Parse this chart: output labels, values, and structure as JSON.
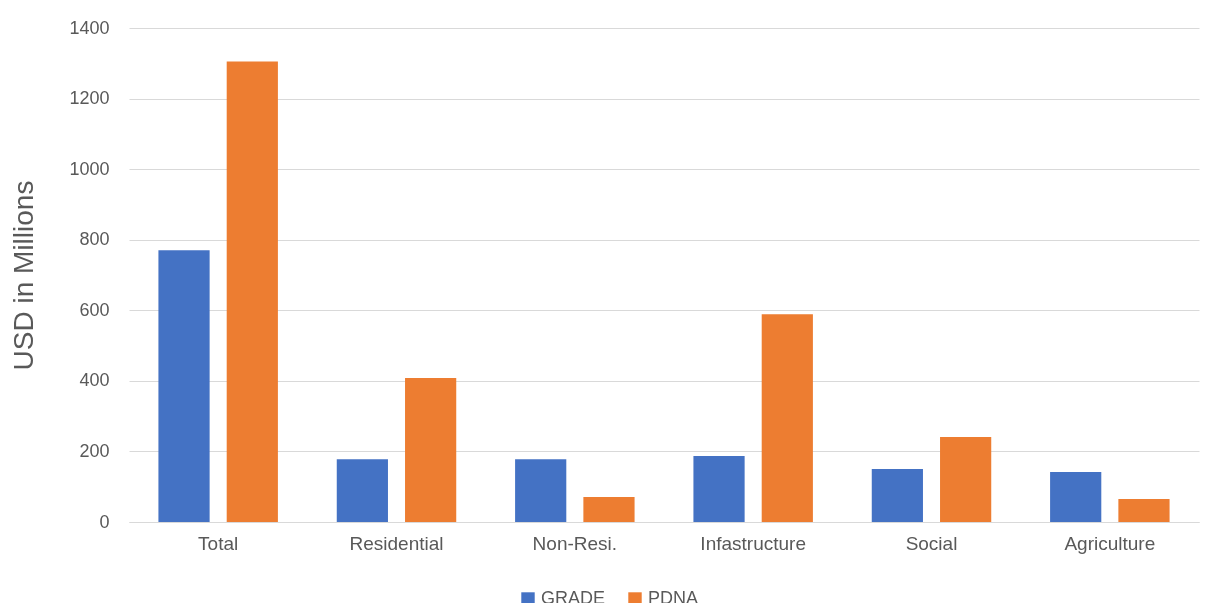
{
  "chart_data": {
    "type": "bar",
    "ylabel": "USD in Millions",
    "categories": [
      "Total",
      "Residential",
      "Non-Resi.",
      "Infastructure",
      "Social",
      "Agriculture"
    ],
    "series": [
      {
        "name": "GRADE",
        "color": "#4472c4",
        "values": [
          770,
          178,
          178,
          187,
          150,
          142
        ]
      },
      {
        "name": "PDNA",
        "color": "#ed7d31",
        "values": [
          1305,
          408,
          71,
          589,
          241,
          65
        ]
      }
    ],
    "ylim": [
      0,
      1400
    ],
    "yticks": [
      0,
      200,
      400,
      600,
      800,
      1000,
      1200,
      1400
    ],
    "grid": "y",
    "legend": "bottom"
  }
}
